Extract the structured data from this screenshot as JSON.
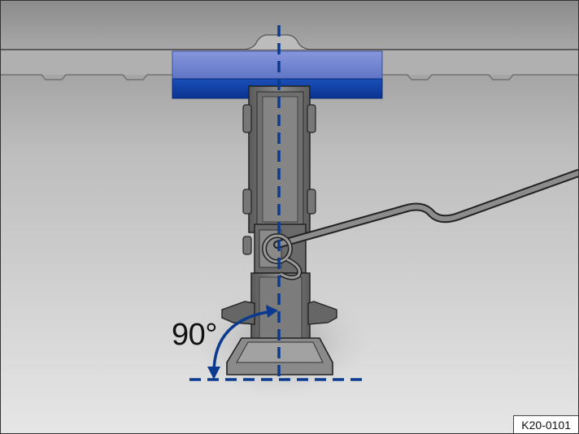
{
  "figure": {
    "angle_label": "90°",
    "reference_code": "K20-0101"
  },
  "colors": {
    "guide_line": "#0b3a8f",
    "jack_head_top": "#7b8fd6",
    "jack_head_bottom": "#0a3fa8",
    "vehicle_sill": "#9a9a9a",
    "ground": "#dcdcdc"
  }
}
